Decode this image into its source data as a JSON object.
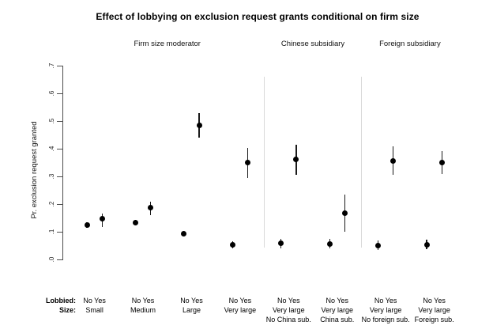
{
  "axis_rows": {
    "lobbied": "Lobbied:",
    "size": "Size:"
  },
  "chart_data": {
    "type": "scatter",
    "title": "Effect of lobbying on exclusion request grants conditional on firm size",
    "ylabel": "Pr. exclusion request granted",
    "xlabel": "",
    "ylim": [
      0,
      0.7
    ],
    "grid": false,
    "legend_position": "none",
    "ytick_values": [
      0,
      0.1,
      0.2,
      0.3,
      0.4,
      0.5,
      0.6,
      0.7
    ],
    "ytick_labels": [
      ".0",
      ".1",
      ".2",
      ".3",
      ".4",
      ".5",
      ".6",
      ".7"
    ],
    "lobbied_levels": [
      "No",
      "Yes"
    ],
    "sections": [
      {
        "label": "Firm size moderator",
        "group_indexes": [
          0,
          1,
          2,
          3
        ]
      },
      {
        "label": "Chinese subsidiary",
        "group_indexes": [
          4,
          5
        ]
      },
      {
        "label": "Foreign subsidiary",
        "group_indexes": [
          6,
          7
        ]
      }
    ],
    "separators_after_groups": [
      3,
      5
    ],
    "groups": [
      {
        "size": "Small",
        "sub": "",
        "no": {
          "est": 0.125,
          "ci": [
            0.116,
            0.134
          ]
        },
        "yes": {
          "est": 0.148,
          "ci": [
            0.118,
            0.168
          ]
        }
      },
      {
        "size": "Medium",
        "sub": "",
        "no": {
          "est": 0.135,
          "ci": [
            0.127,
            0.143
          ]
        },
        "yes": {
          "est": 0.188,
          "ci": [
            0.162,
            0.21
          ]
        }
      },
      {
        "size": "Large",
        "sub": "",
        "no": {
          "est": 0.093,
          "ci": [
            0.086,
            0.1
          ]
        },
        "yes": {
          "est": 0.485,
          "ci": [
            0.44,
            0.53
          ]
        }
      },
      {
        "size": "Very large",
        "sub": "",
        "no": {
          "est": 0.054,
          "ci": [
            0.04,
            0.068
          ]
        },
        "yes": {
          "est": 0.352,
          "ci": [
            0.295,
            0.405
          ]
        }
      },
      {
        "size": "Very large",
        "sub": "No China sub.",
        "no": {
          "est": 0.059,
          "ci": [
            0.042,
            0.076
          ]
        },
        "yes": {
          "est": 0.362,
          "ci": [
            0.307,
            0.414
          ]
        }
      },
      {
        "size": "Very large",
        "sub": "China sub.",
        "no": {
          "est": 0.057,
          "ci": [
            0.04,
            0.074
          ]
        },
        "yes": {
          "est": 0.167,
          "ci": [
            0.1,
            0.235
          ]
        }
      },
      {
        "size": "Very large",
        "sub": "No foreign sub.",
        "no": {
          "est": 0.052,
          "ci": [
            0.035,
            0.069
          ]
        },
        "yes": {
          "est": 0.357,
          "ci": [
            0.307,
            0.409
          ]
        }
      },
      {
        "size": "Very large",
        "sub": "Foreign sub.",
        "no": {
          "est": 0.055,
          "ci": [
            0.038,
            0.072
          ]
        },
        "yes": {
          "est": 0.35,
          "ci": [
            0.31,
            0.393
          ]
        }
      }
    ],
    "colors": {
      "point": "#000000",
      "ci": "#1a1a1a",
      "separator": "#d9d9d9",
      "axis": "#4d4d4d",
      "text": "#000000",
      "background": "#ffffff"
    }
  }
}
